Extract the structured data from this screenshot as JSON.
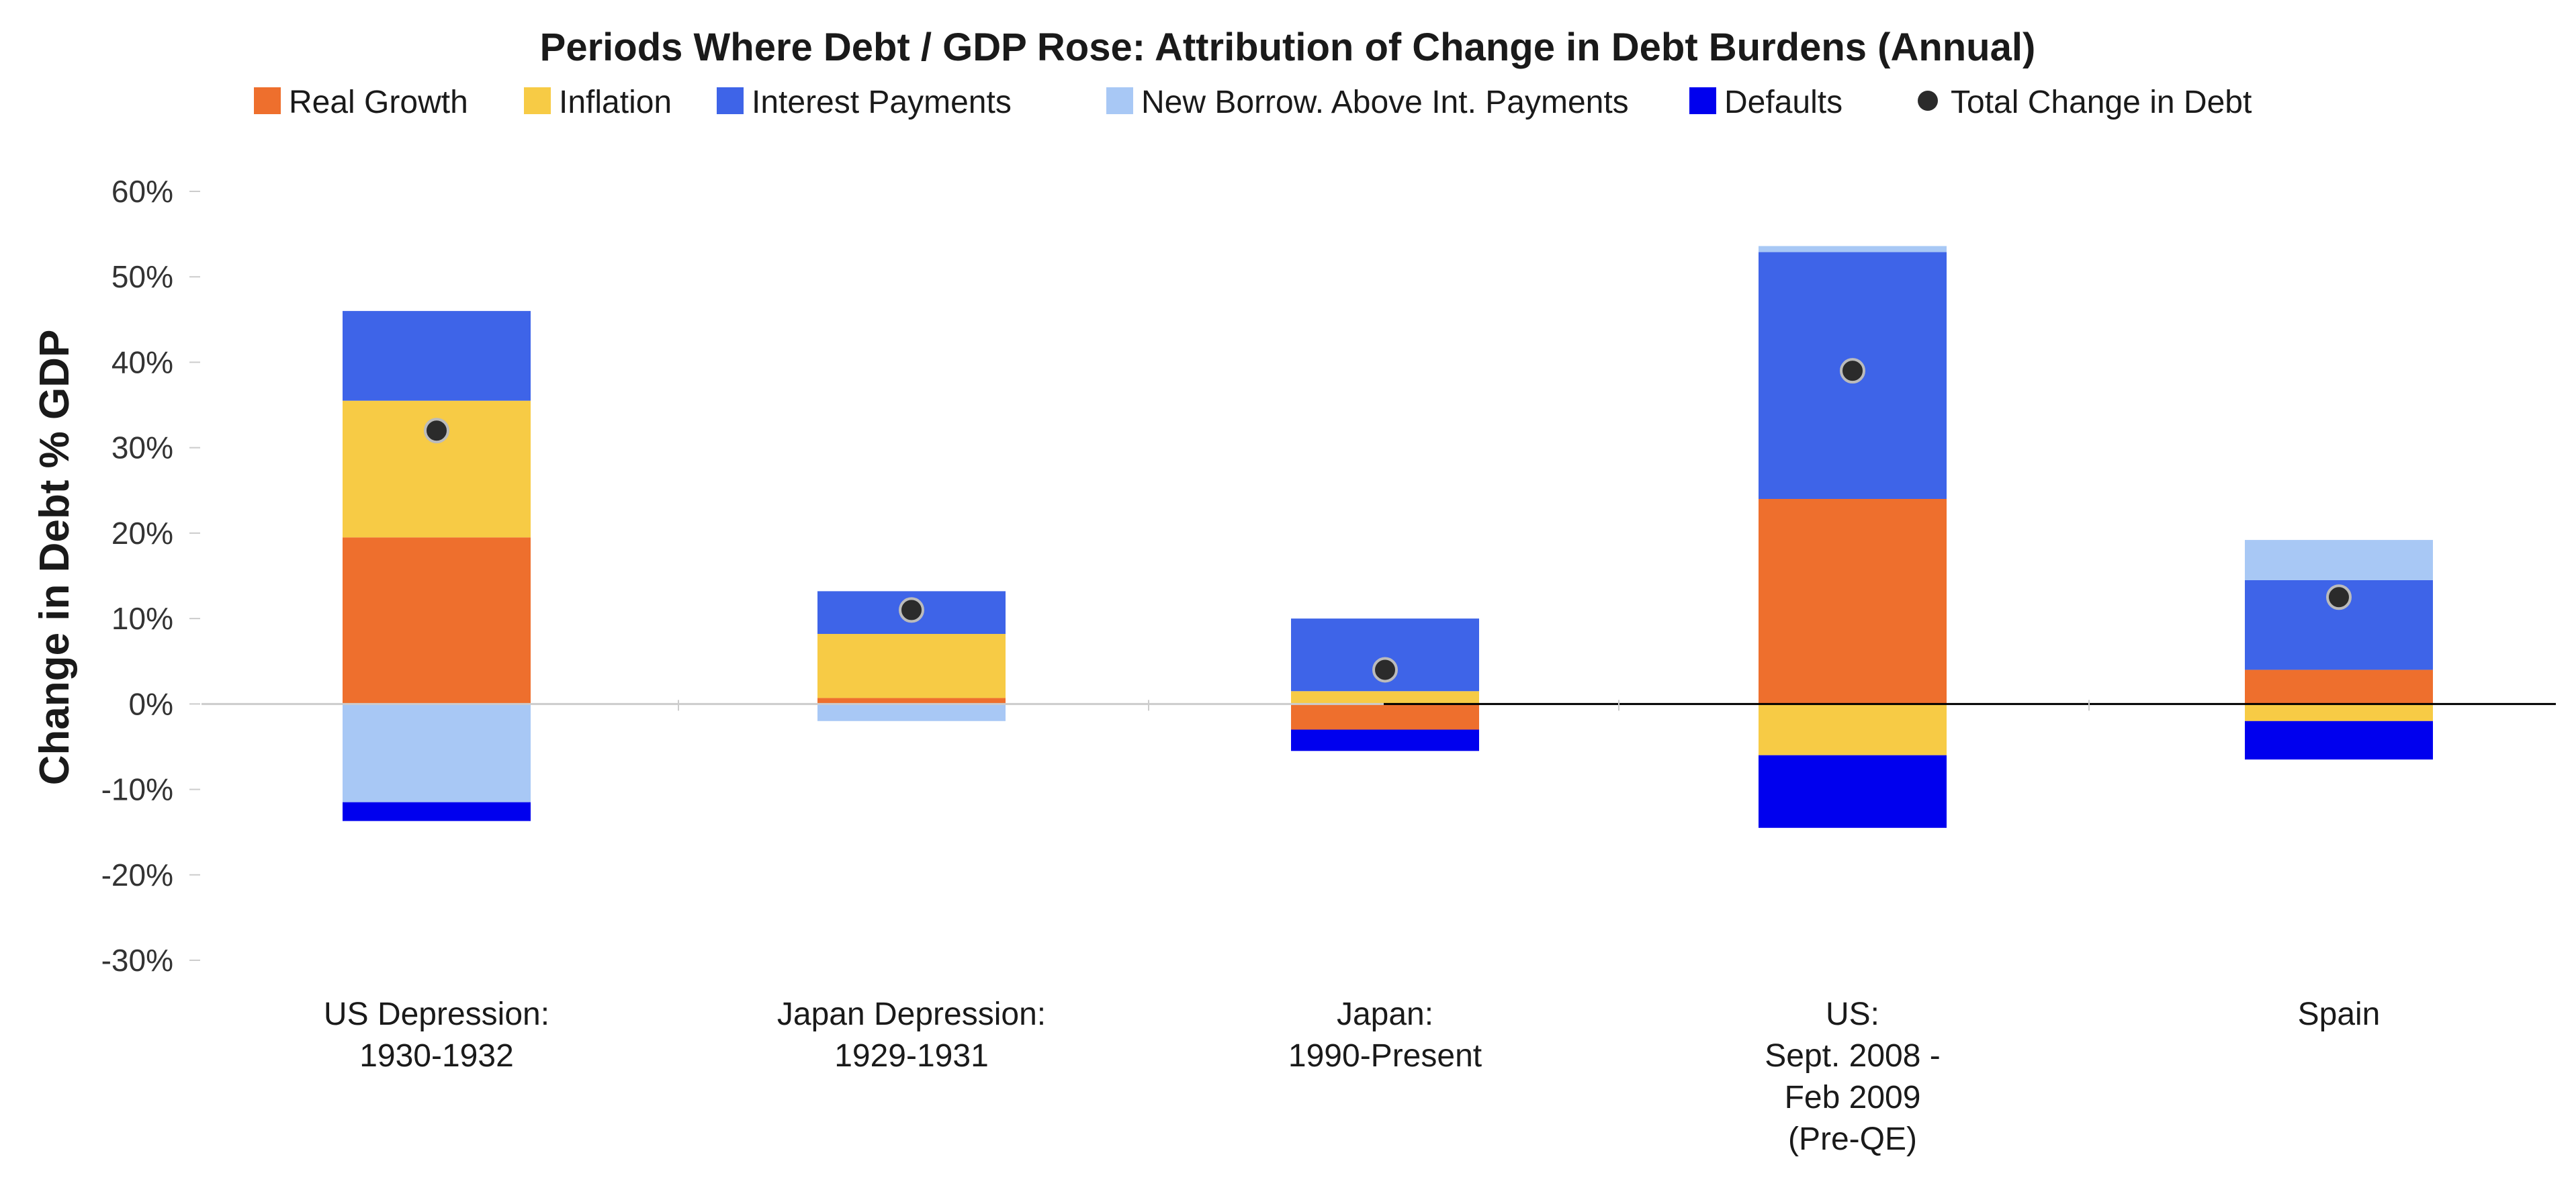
{
  "chart_data": {
    "type": "bar",
    "stacked": true,
    "title": "Periods Where Debt / GDP Rose:  Attribution of Change in Debt Burdens (Annual)",
    "ylabel": "Change in Debt % GDP",
    "ylim": [
      -30,
      60
    ],
    "yticks": [
      60,
      50,
      40,
      30,
      20,
      10,
      0,
      -10,
      -20,
      -30
    ],
    "ytick_labels": [
      "60%",
      "50%",
      "40%",
      "30%",
      "20%",
      "10%",
      "0%",
      "-10%",
      "-20%",
      "-30%"
    ],
    "legend_position": "top",
    "categories": [
      [
        "US Depression:",
        "1930-1932"
      ],
      [
        "Japan Depression:",
        "1929-1931"
      ],
      [
        "Japan:",
        "1990-Present"
      ],
      [
        "US:",
        "Sept. 2008 -",
        "Feb 2009",
        "(Pre-QE)"
      ],
      [
        "Spain"
      ]
    ],
    "series": [
      {
        "name": "Real Growth",
        "color": "#ee6f2d",
        "values": [
          19.5,
          0.7,
          -3.0,
          24.0,
          4.0
        ]
      },
      {
        "name": "Inflation",
        "color": "#f7cb45",
        "values": [
          16.0,
          7.5,
          1.5,
          -6.0,
          -2.0
        ]
      },
      {
        "name": "Interest Payments",
        "color": "#3e64e8",
        "values": [
          10.5,
          5.0,
          8.5,
          28.9,
          10.5
        ]
      },
      {
        "name": "New Borrow. Above Int. Payments",
        "color": "#a8c8f5",
        "values": [
          -11.5,
          -2.0,
          0.0,
          0.7,
          4.7
        ]
      },
      {
        "name": "Defaults",
        "color": "#0000ee",
        "values": [
          -2.2,
          0.0,
          -2.5,
          -8.5,
          -4.5
        ]
      }
    ],
    "total": {
      "name": "Total Change in Debt",
      "color": "#2b2b2b",
      "values": [
        32.0,
        11.0,
        4.0,
        39.0,
        12.5
      ]
    }
  }
}
